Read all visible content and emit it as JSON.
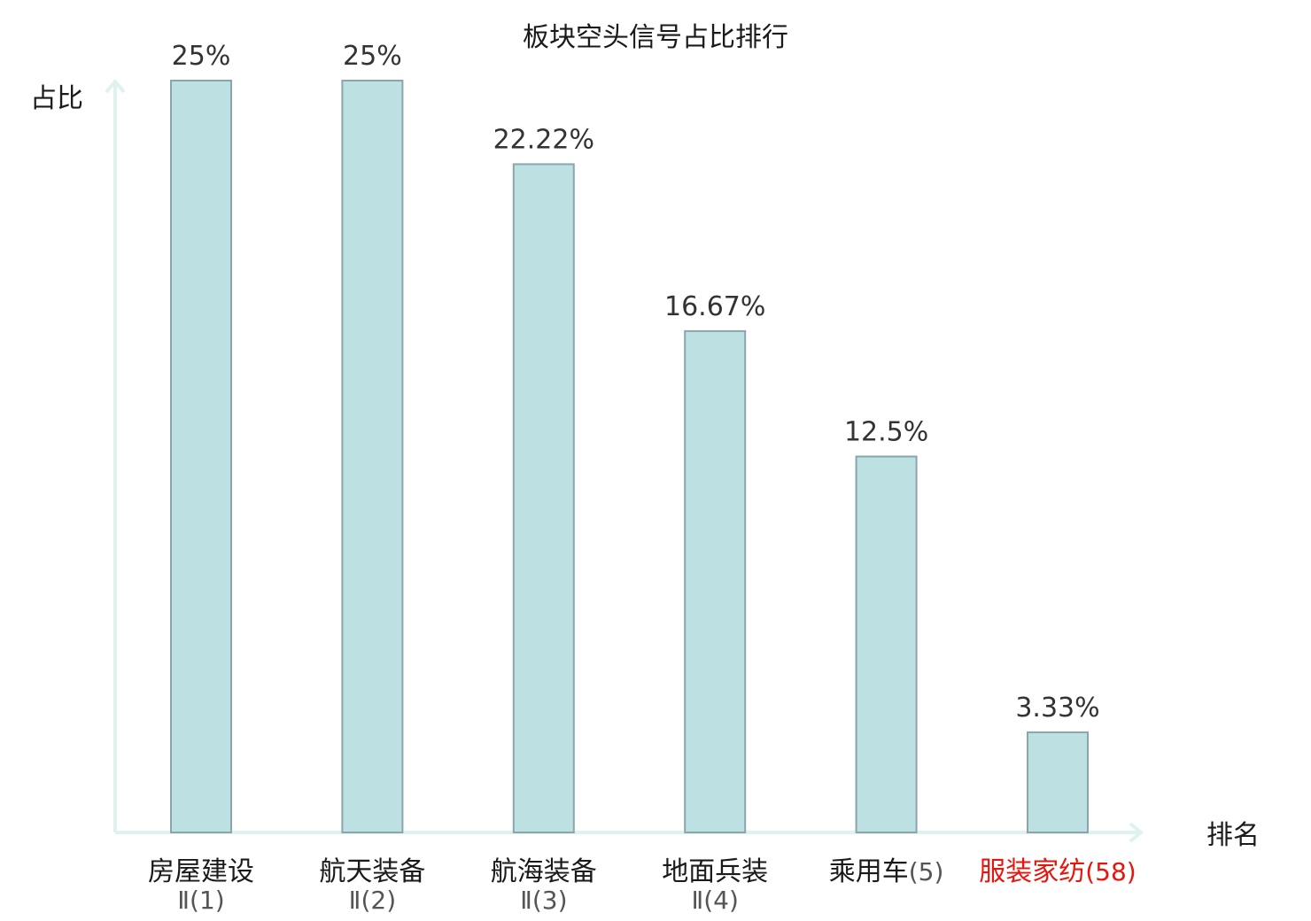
{
  "chart_data": {
    "type": "bar",
    "title": "板块空头信号占比排行",
    "ylabel": "占比",
    "xlabel": "排名",
    "ylim": [
      0,
      25
    ],
    "grid": false,
    "categories": [
      {
        "name": "房屋建设",
        "rank": "Ⅱ(1)",
        "highlight": false
      },
      {
        "name": "航天装备",
        "rank": "Ⅱ(2)",
        "highlight": false
      },
      {
        "name": "航海装备",
        "rank": "Ⅱ(3)",
        "highlight": false
      },
      {
        "name": "地面兵装",
        "rank": "Ⅱ(4)",
        "highlight": false
      },
      {
        "name": "乘用车",
        "rank": "(5)",
        "highlight": false
      },
      {
        "name": "服装家纺",
        "rank": "(58)",
        "highlight": true
      }
    ],
    "values": [
      25,
      25,
      22.22,
      16.67,
      12.5,
      3.33
    ],
    "value_labels": [
      "25%",
      "25%",
      "22.22%",
      "16.67%",
      "12.5%",
      "3.33%"
    ]
  },
  "colors": {
    "bar_fill": "#bde0e3",
    "bar_stroke": "#8aa6aa",
    "axis": "#e0f2ef",
    "highlight": "#e8150e",
    "text": "#1a1a1a",
    "rank_text": "#555555"
  }
}
